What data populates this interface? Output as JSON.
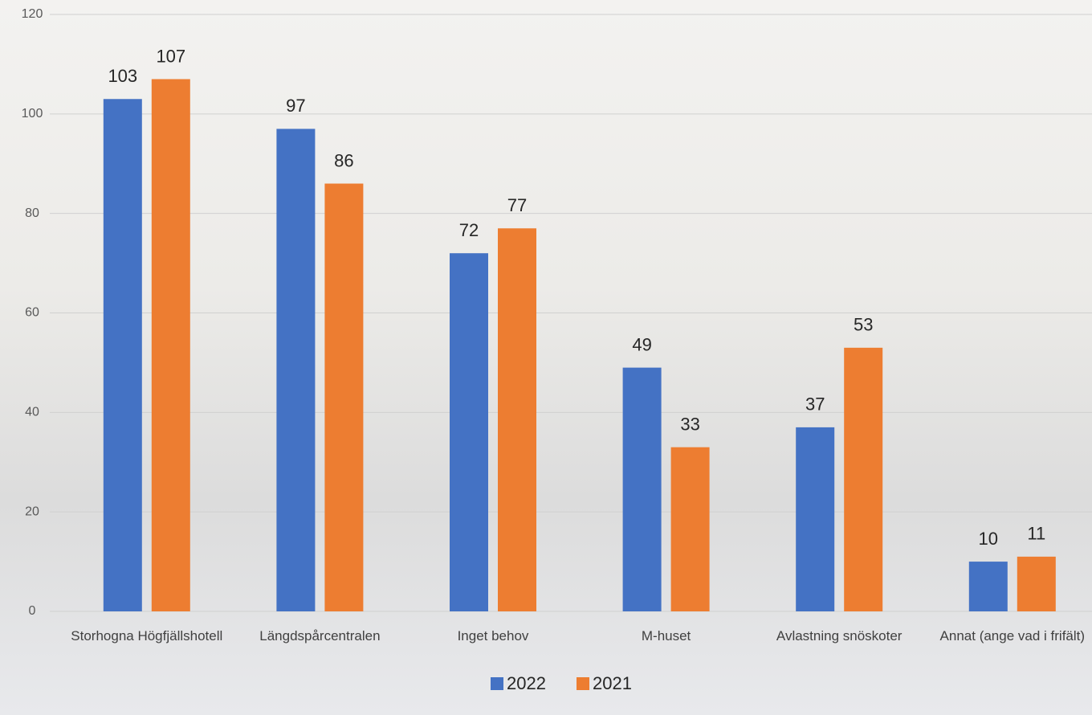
{
  "chart_data": {
    "type": "bar",
    "categories": [
      "Storhogna Högfjällshotell",
      "Längdspårcentralen",
      "Inget behov",
      "M-huset",
      "Avlastning snöskoter",
      "Annat (ange vad i frifält)"
    ],
    "series": [
      {
        "name": "2022",
        "color": "#4472c4",
        "values": [
          103,
          97,
          72,
          49,
          37,
          10
        ]
      },
      {
        "name": "2021",
        "color": "#ed7d31",
        "values": [
          107,
          86,
          77,
          33,
          53,
          11
        ]
      }
    ],
    "ylim": [
      0,
      120
    ],
    "yticks": [
      0,
      20,
      40,
      60,
      80,
      100,
      120
    ],
    "grid": true,
    "legend": "bottom"
  }
}
